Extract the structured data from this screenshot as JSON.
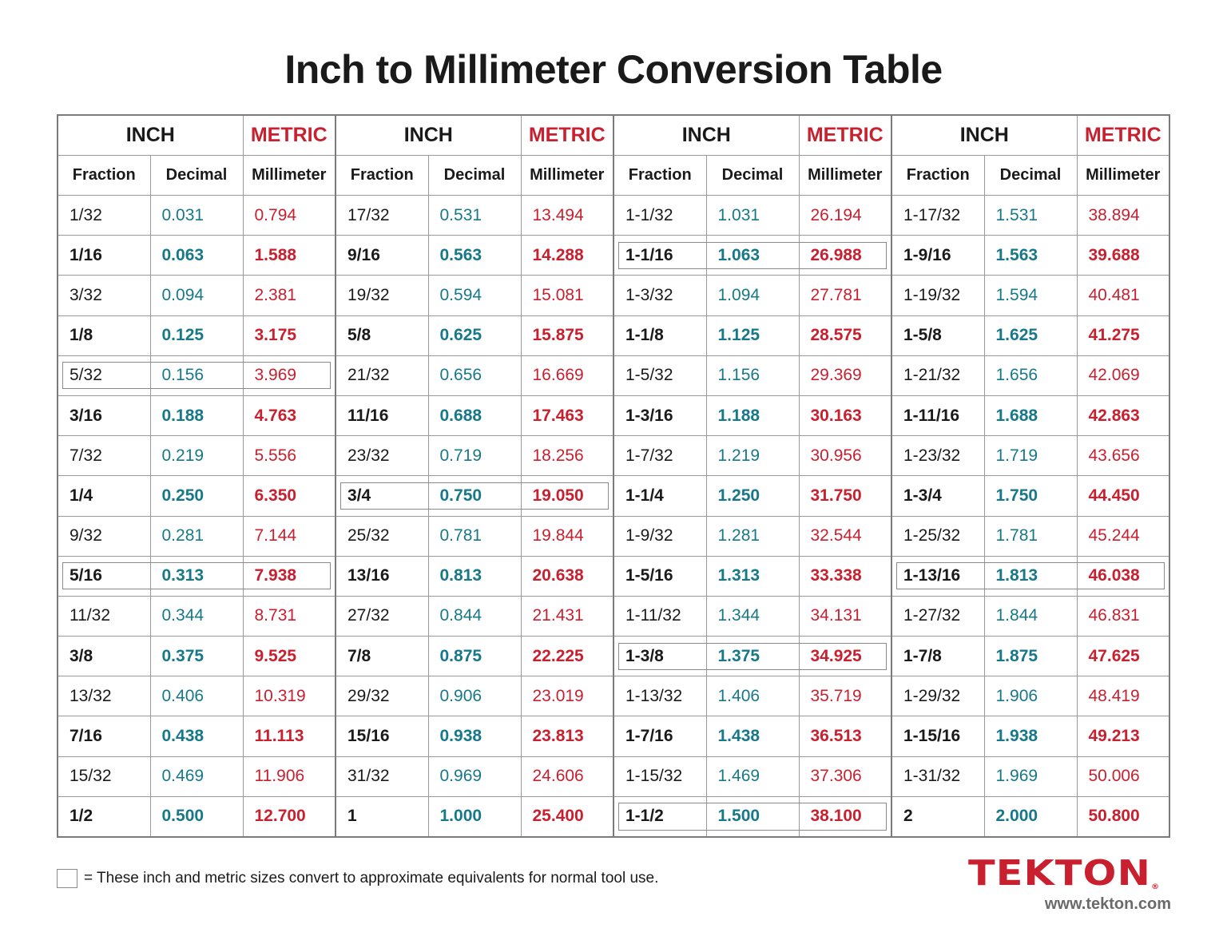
{
  "title": "Inch to Millimeter Conversion Table",
  "header": {
    "inch": "INCH",
    "metric": "METRIC",
    "fraction": "Fraction",
    "decimal": "Decimal",
    "millimeter": "Millimeter"
  },
  "colors": {
    "decimal": "#17788a",
    "metric": "#c8202f",
    "brand": "#c8202f"
  },
  "groups": [
    {
      "rows": [
        [
          "1/32",
          "0.031",
          "0.794"
        ],
        [
          "1/16",
          "0.063",
          "1.588"
        ],
        [
          "3/32",
          "0.094",
          "2.381"
        ],
        [
          "1/8",
          "0.125",
          "3.175"
        ],
        [
          "5/32",
          "0.156",
          "3.969"
        ],
        [
          "3/16",
          "0.188",
          "4.763"
        ],
        [
          "7/32",
          "0.219",
          "5.556"
        ],
        [
          "1/4",
          "0.250",
          "6.350"
        ],
        [
          "9/32",
          "0.281",
          "7.144"
        ],
        [
          "5/16",
          "0.313",
          "7.938"
        ],
        [
          "11/32",
          "0.344",
          "8.731"
        ],
        [
          "3/8",
          "0.375",
          "9.525"
        ],
        [
          "13/32",
          "0.406",
          "10.319"
        ],
        [
          "7/16",
          "0.438",
          "11.113"
        ],
        [
          "15/32",
          "0.469",
          "11.906"
        ],
        [
          "1/2",
          "0.500",
          "12.700"
        ]
      ],
      "boxed": [
        4,
        9
      ]
    },
    {
      "rows": [
        [
          "17/32",
          "0.531",
          "13.494"
        ],
        [
          "9/16",
          "0.563",
          "14.288"
        ],
        [
          "19/32",
          "0.594",
          "15.081"
        ],
        [
          "5/8",
          "0.625",
          "15.875"
        ],
        [
          "21/32",
          "0.656",
          "16.669"
        ],
        [
          "11/16",
          "0.688",
          "17.463"
        ],
        [
          "23/32",
          "0.719",
          "18.256"
        ],
        [
          "3/4",
          "0.750",
          "19.050"
        ],
        [
          "25/32",
          "0.781",
          "19.844"
        ],
        [
          "13/16",
          "0.813",
          "20.638"
        ],
        [
          "27/32",
          "0.844",
          "21.431"
        ],
        [
          "7/8",
          "0.875",
          "22.225"
        ],
        [
          "29/32",
          "0.906",
          "23.019"
        ],
        [
          "15/16",
          "0.938",
          "23.813"
        ],
        [
          "31/32",
          "0.969",
          "24.606"
        ],
        [
          "1",
          "1.000",
          "25.400"
        ]
      ],
      "boxed": [
        7
      ]
    },
    {
      "rows": [
        [
          "1-1/32",
          "1.031",
          "26.194"
        ],
        [
          "1-1/16",
          "1.063",
          "26.988"
        ],
        [
          "1-3/32",
          "1.094",
          "27.781"
        ],
        [
          "1-1/8",
          "1.125",
          "28.575"
        ],
        [
          "1-5/32",
          "1.156",
          "29.369"
        ],
        [
          "1-3/16",
          "1.188",
          "30.163"
        ],
        [
          "1-7/32",
          "1.219",
          "30.956"
        ],
        [
          "1-1/4",
          "1.250",
          "31.750"
        ],
        [
          "1-9/32",
          "1.281",
          "32.544"
        ],
        [
          "1-5/16",
          "1.313",
          "33.338"
        ],
        [
          "1-11/32",
          "1.344",
          "34.131"
        ],
        [
          "1-3/8",
          "1.375",
          "34.925"
        ],
        [
          "1-13/32",
          "1.406",
          "35.719"
        ],
        [
          "1-7/16",
          "1.438",
          "36.513"
        ],
        [
          "1-15/32",
          "1.469",
          "37.306"
        ],
        [
          "1-1/2",
          "1.500",
          "38.100"
        ]
      ],
      "boxed": [
        1,
        11,
        15
      ]
    },
    {
      "rows": [
        [
          "1-17/32",
          "1.531",
          "38.894"
        ],
        [
          "1-9/16",
          "1.563",
          "39.688"
        ],
        [
          "1-19/32",
          "1.594",
          "40.481"
        ],
        [
          "1-5/8",
          "1.625",
          "41.275"
        ],
        [
          "1-21/32",
          "1.656",
          "42.069"
        ],
        [
          "1-11/16",
          "1.688",
          "42.863"
        ],
        [
          "1-23/32",
          "1.719",
          "43.656"
        ],
        [
          "1-3/4",
          "1.750",
          "44.450"
        ],
        [
          "1-25/32",
          "1.781",
          "45.244"
        ],
        [
          "1-13/16",
          "1.813",
          "46.038"
        ],
        [
          "1-27/32",
          "1.844",
          "46.831"
        ],
        [
          "1-7/8",
          "1.875",
          "47.625"
        ],
        [
          "1-29/32",
          "1.906",
          "48.419"
        ],
        [
          "1-15/16",
          "1.938",
          "49.213"
        ],
        [
          "1-31/32",
          "1.969",
          "50.006"
        ],
        [
          "2",
          "2.000",
          "50.800"
        ]
      ],
      "boxed": [
        9
      ]
    }
  ],
  "legend": "= These inch and metric sizes convert to approximate equivalents for normal tool use.",
  "brand": {
    "logo": "TEKTON",
    "url": "www.tekton.com"
  }
}
